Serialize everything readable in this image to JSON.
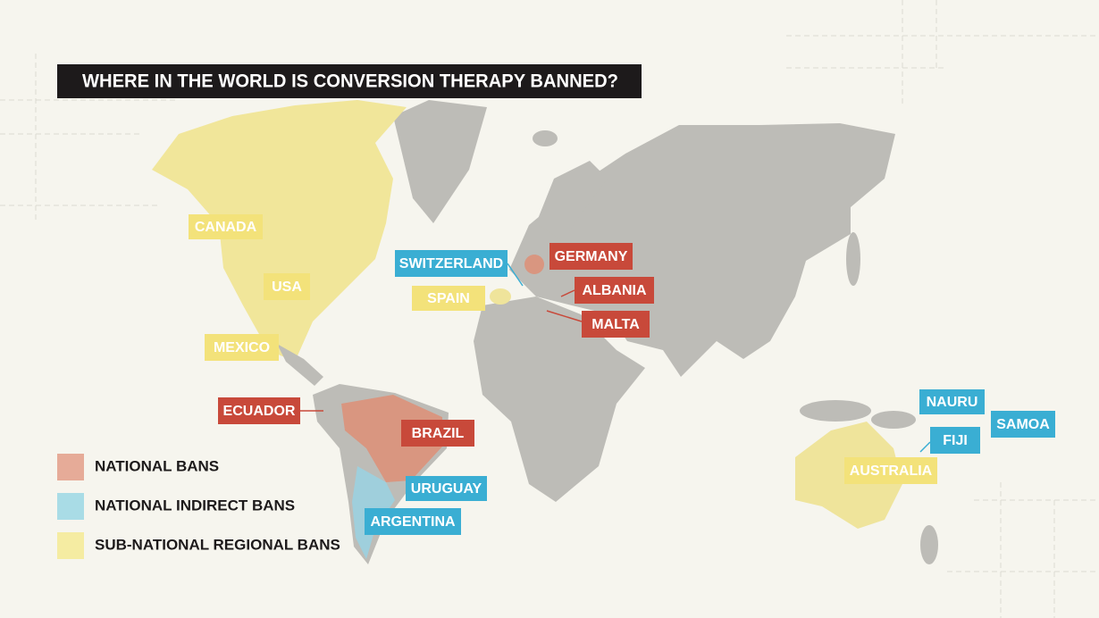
{
  "title": "WHERE IN THE WORLD IS CONVERSION THERAPY BANNED?",
  "legend": [
    {
      "label": "NATIONAL BANS",
      "color": "#e6ab98"
    },
    {
      "label": "NATIONAL INDIRECT BANS",
      "color": "#a9dce6"
    },
    {
      "label": "SUB-NATIONAL REGIONAL BANS",
      "color": "#f5eca2"
    }
  ],
  "labels": [
    {
      "text": "CANADA",
      "color": "#f3e27a"
    },
    {
      "text": "USA",
      "color": "#f3e27a"
    },
    {
      "text": "MEXICO",
      "color": "#f3e27a"
    },
    {
      "text": "ECUADOR",
      "color": "#c8493a"
    },
    {
      "text": "BRAZIL",
      "color": "#c8493a"
    },
    {
      "text": "URUGUAY",
      "color": "#3aaed3"
    },
    {
      "text": "ARGENTINA",
      "color": "#3aaed3"
    },
    {
      "text": "SWITZERLAND",
      "color": "#3aaed3"
    },
    {
      "text": "SPAIN",
      "color": "#f3e27a"
    },
    {
      "text": "GERMANY",
      "color": "#c8493a"
    },
    {
      "text": "ALBANIA",
      "color": "#c8493a"
    },
    {
      "text": "MALTA",
      "color": "#c8493a"
    },
    {
      "text": "NAURU",
      "color": "#3aaed3"
    },
    {
      "text": "SAMOA",
      "color": "#3aaed3"
    },
    {
      "text": "FIJI",
      "color": "#3aaed3"
    },
    {
      "text": "AUSTRALIA",
      "color": "#f3e27a"
    }
  ]
}
